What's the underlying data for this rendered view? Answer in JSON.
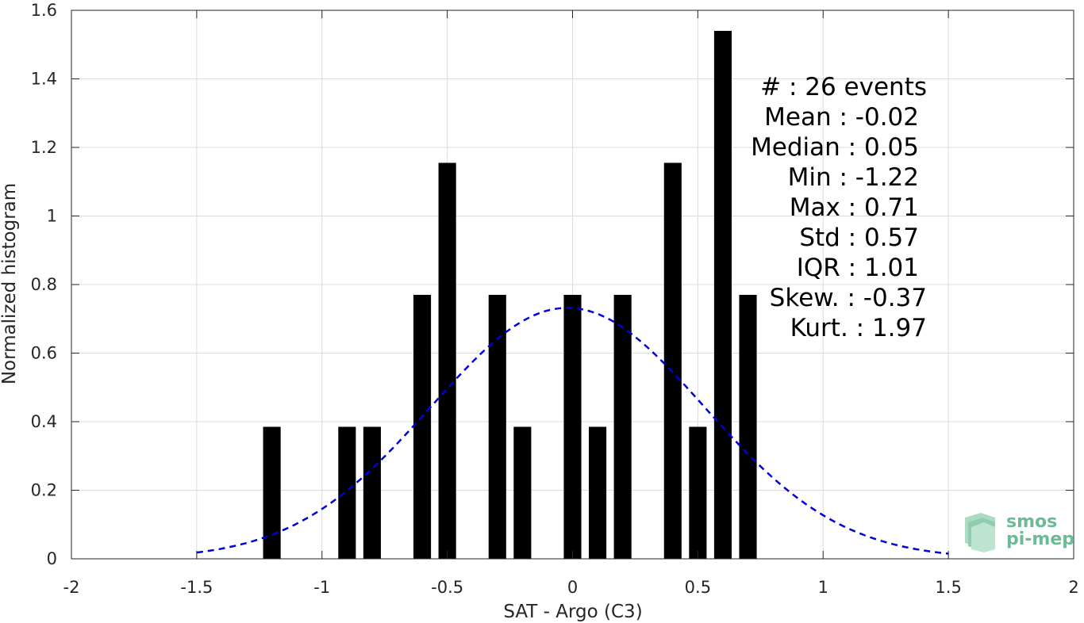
{
  "chart_data": {
    "type": "bar",
    "title": "",
    "xlabel": "SAT - Argo (C3)",
    "ylabel": "Normalized histogram",
    "xlim": [
      -2,
      2
    ],
    "ylim": [
      0,
      1.6
    ],
    "grid": true,
    "xticks": [
      -2,
      -1.5,
      -1,
      -0.5,
      0,
      0.5,
      1,
      1.5,
      2
    ],
    "xtick_labels": [
      "-2",
      "-1.5",
      "-1",
      "-0.5",
      "0",
      "0.5",
      "1",
      "1.5",
      "2"
    ],
    "yticks": [
      0,
      0.2,
      0.4,
      0.6,
      0.8,
      1,
      1.2,
      1.4,
      1.6
    ],
    "ytick_labels": [
      "0",
      "0.2",
      "0.4",
      "0.6",
      "0.8",
      "1",
      "1.2",
      "1.4",
      "1.6"
    ],
    "bar_width": 0.07,
    "bars": [
      {
        "x": -1.2,
        "y": 0.385
      },
      {
        "x": -0.9,
        "y": 0.385
      },
      {
        "x": -0.8,
        "y": 0.385
      },
      {
        "x": -0.6,
        "y": 0.77
      },
      {
        "x": -0.5,
        "y": 1.155
      },
      {
        "x": -0.3,
        "y": 0.77
      },
      {
        "x": -0.2,
        "y": 0.385
      },
      {
        "x": 0.0,
        "y": 0.77
      },
      {
        "x": 0.1,
        "y": 0.385
      },
      {
        "x": 0.2,
        "y": 0.77
      },
      {
        "x": 0.4,
        "y": 1.155
      },
      {
        "x": 0.5,
        "y": 0.385
      },
      {
        "x": 0.6,
        "y": 1.54
      },
      {
        "x": 0.7,
        "y": 0.77
      }
    ],
    "bar_color": "#000000",
    "fit_curve": {
      "type": "normal",
      "mean": -0.02,
      "std": 0.545,
      "x_range": [
        -1.5,
        1.5
      ],
      "color": "#0000dd",
      "style": "dashed"
    },
    "stats_lines": [
      "#  : 26 events",
      "Mean : -0.02",
      "Median : 0.05",
      "Min : -1.22",
      "Max : 0.71",
      "Std : 0.57",
      "IQR : 1.01",
      "Skew. : -0.37",
      "Kurt. : 1.97"
    ]
  },
  "logo": {
    "line1": "smos",
    "line2": "pi-mep",
    "color": "#6dbb95"
  }
}
